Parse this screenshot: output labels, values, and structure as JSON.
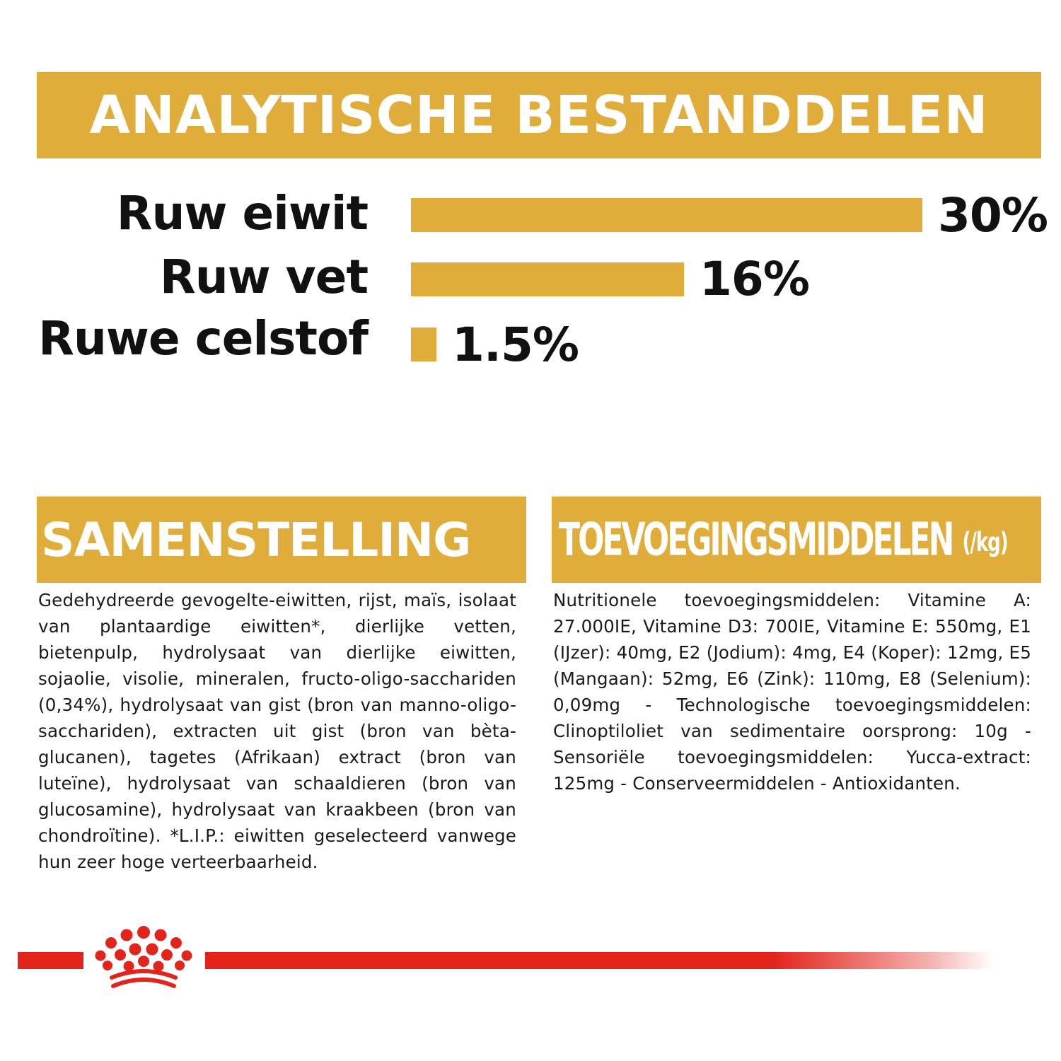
{
  "analysis": {
    "title": "ANALYTISCHE BESTANDDELEN",
    "rows": [
      {
        "label": "Ruw eiwit",
        "value": "30%",
        "percent": 30
      },
      {
        "label": "Ruw vet",
        "value": "16%",
        "percent": 16
      },
      {
        "label": "Ruwe celstof",
        "value": "1.5%",
        "percent": 1.5
      }
    ]
  },
  "composition": {
    "title": "SAMENSTELLING",
    "text": "Gedehydreerde gevogelte-eiwitten, rijst, maïs, isolaat van plantaardige eiwitten*, dierlijke vetten, bietenpulp, hydrolysaat van dierlijke eiwitten, sojaolie, visolie, mineralen, fructo-oligo-sacchariden (0,34%), hydrolysaat van gist (bron van manno-oligo-sacchariden), extracten uit gist (bron van bèta-glucanen), tagetes (Afrikaan) extract (bron van luteïne), hydrolysaat van schaaldieren (bron van glucosamine), hydrolysaat van kraakbeen (bron van chondroïtine). *L.I.P.: eiwitten geselecteerd vanwege hun zeer hoge verteerbaarheid."
  },
  "additives": {
    "title": "TOEVOEGINGSMIDDELEN",
    "unit": "(/kg)",
    "text": "Nutritionele toevoegingsmiddelen: Vitamine A: 27.000IE, Vitamine D3: 700IE, Vitamine E: 550mg, E1 (IJzer): 40mg, E2 (Jodium): 4mg, E4 (Koper): 12mg, E5 (Mangaan): 52mg, E6 (Zink): 110mg, E8 (Selenium): 0,09mg - Technologische toevoegingsmiddelen: Clinoptiloliet van sedimentaire oorsprong: 10g - Sensoriële toevoegingsmiddelen: Yucca-extract: 125mg - Conserveermiddelen - Antioxidanten."
  },
  "colors": {
    "accent": "#e0ac3a",
    "brand_red": "#e2241b",
    "text": "#111111"
  },
  "footer": {
    "logo_icon": "royal-canin-crown-icon"
  }
}
